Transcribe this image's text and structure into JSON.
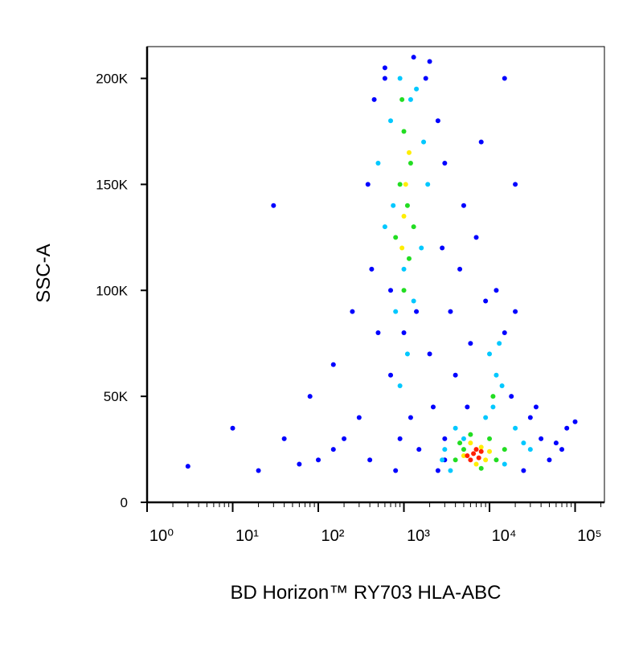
{
  "chart_data": {
    "type": "scatter",
    "x_label": "BD Horizon™ RY703 HLA-ABC",
    "y_label": "SSC-A",
    "x_scale": "log",
    "xlim": [
      1,
      220000
    ],
    "ylim": [
      0,
      215000
    ],
    "xticks": [
      {
        "value": 1,
        "label": "10⁰"
      },
      {
        "value": 10,
        "label": "10¹"
      },
      {
        "value": 100,
        "label": "10²"
      },
      {
        "value": 1000,
        "label": "10³"
      },
      {
        "value": 10000,
        "label": "10⁴"
      },
      {
        "value": 100000,
        "label": "10⁵"
      }
    ],
    "xminorticks": [
      2,
      3,
      4,
      5,
      6,
      7,
      8,
      9,
      20,
      30,
      40,
      50,
      60,
      70,
      80,
      90,
      200,
      300,
      400,
      500,
      600,
      700,
      800,
      900,
      2000,
      3000,
      4000,
      5000,
      6000,
      7000,
      8000,
      9000,
      20000,
      30000,
      40000,
      50000,
      60000,
      70000,
      80000,
      90000,
      200000
    ],
    "yticks": [
      0,
      {
        "value": 50000,
        "label": "50K"
      },
      {
        "value": 100000,
        "label": "100K"
      },
      {
        "value": 150000,
        "label": "150K"
      },
      {
        "value": 200000,
        "label": "200K"
      }
    ],
    "series": [
      {
        "color": "#0000ff",
        "x": [
          450,
          600,
          1800,
          2500,
          3000,
          380,
          420,
          2800,
          500,
          700,
          2000,
          3500,
          5000,
          8000,
          15000,
          20000,
          300,
          200,
          150,
          100,
          60,
          40,
          30,
          3,
          10,
          20,
          80,
          150,
          250,
          1200,
          2200,
          3000,
          1500,
          2500,
          3000,
          30000,
          40000,
          60000,
          80000,
          100000,
          50000,
          25000,
          4000,
          6000,
          15000,
          20000,
          12000,
          9000,
          700,
          900,
          600,
          1300,
          2000,
          5500,
          18000,
          35000,
          70000,
          400,
          800,
          4500,
          7000,
          1000,
          1400
        ],
        "values": [
          190000,
          205000,
          200000,
          180000,
          160000,
          150000,
          110000,
          120000,
          80000,
          60000,
          70000,
          90000,
          140000,
          170000,
          200000,
          150000,
          40000,
          30000,
          25000,
          20000,
          18000,
          30000,
          140000,
          17000,
          35000,
          15000,
          50000,
          65000,
          90000,
          40000,
          45000,
          30000,
          25000,
          15000,
          20000,
          40000,
          30000,
          28000,
          35000,
          38000,
          20000,
          15000,
          60000,
          75000,
          80000,
          90000,
          100000,
          95000,
          100000,
          30000,
          200000,
          210000,
          208000,
          45000,
          50000,
          45000,
          25000,
          20000,
          15000,
          110000,
          125000,
          80000,
          90000
        ]
      },
      {
        "color": "#00c8ff",
        "x": [
          700,
          900,
          1400,
          1700,
          600,
          1600,
          800,
          1300,
          1100,
          900,
          1200,
          500,
          1900,
          1000,
          750,
          3000,
          4000,
          12000,
          10000,
          14000,
          11000,
          20000,
          25000,
          15000,
          3500,
          9000,
          13000,
          30000,
          5000,
          2800
        ],
        "values": [
          180000,
          200000,
          195000,
          170000,
          130000,
          120000,
          90000,
          95000,
          70000,
          55000,
          190000,
          160000,
          150000,
          110000,
          140000,
          25000,
          35000,
          60000,
          70000,
          55000,
          45000,
          35000,
          28000,
          18000,
          15000,
          40000,
          75000,
          25000,
          30000,
          20000
        ]
      },
      {
        "color": "#22dd22",
        "x": [
          1000,
          1200,
          900,
          1100,
          800,
          1300,
          1000,
          950,
          1150,
          5000,
          6000,
          10000,
          12000,
          4000,
          15000,
          11000,
          8000,
          4500
        ],
        "values": [
          175000,
          160000,
          150000,
          140000,
          125000,
          130000,
          100000,
          190000,
          115000,
          25000,
          32000,
          30000,
          20000,
          20000,
          25000,
          50000,
          16000,
          28000
        ]
      },
      {
        "color": "#ffee00",
        "x": [
          1050,
          1000,
          1150,
          950,
          6000,
          8000,
          5000,
          10000,
          7000,
          9000
        ],
        "values": [
          150000,
          135000,
          165000,
          120000,
          28000,
          26000,
          22000,
          24000,
          18000,
          20000
        ]
      },
      {
        "color": "#ff2000",
        "x": [
          6500,
          7500,
          6000,
          8000,
          7000,
          5500
        ],
        "values": [
          23000,
          21000,
          20000,
          24000,
          25000,
          22000
        ]
      }
    ]
  }
}
